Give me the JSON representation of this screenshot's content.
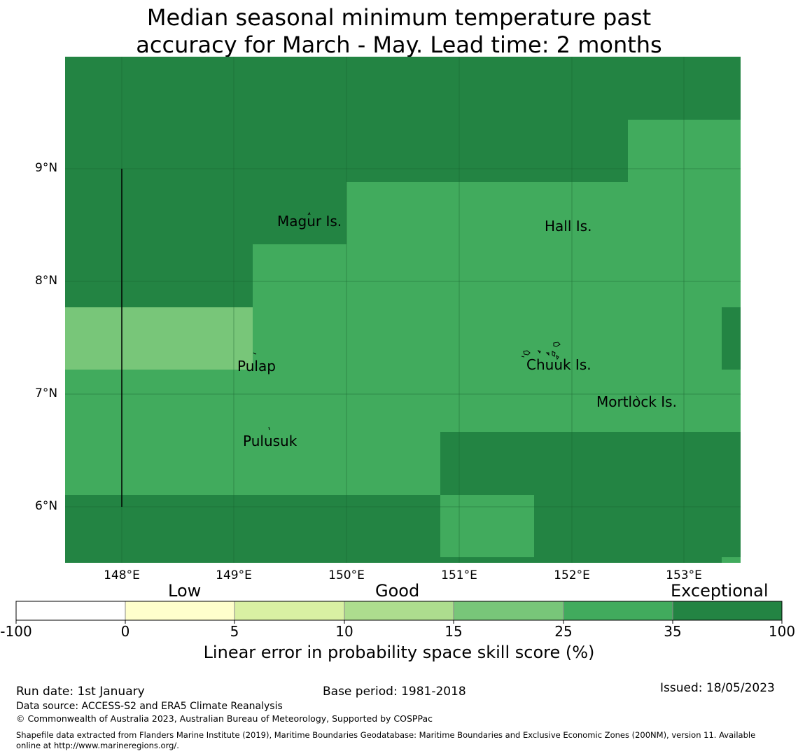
{
  "title_line1": "Median seasonal minimum temperature past",
  "title_line2": "accuracy for March - May. Lead time: 2 months",
  "map": {
    "lat_labels": [
      "9°N",
      "8°N",
      "7°N",
      "6°N"
    ],
    "lon_labels": [
      "148°E",
      "149°E",
      "150°E",
      "151°E",
      "152°E",
      "153°E"
    ],
    "places": [
      "Magur Is.",
      "Hall Is.",
      "Pulap",
      "Chuuk Is.",
      "Mortlock Is.",
      "Pulusuk"
    ],
    "colors": {
      "exceptional": "#238443",
      "dark": "#41ab5d",
      "mid": "#78c679"
    }
  },
  "colorbar": {
    "categories": [
      "Low",
      "Good",
      "Exceptional"
    ],
    "ticks": [
      "-100",
      "0",
      "5",
      "10",
      "15",
      "25",
      "35",
      "100"
    ],
    "colors": [
      "#ffffff",
      "#ffffcc",
      "#d9f0a3",
      "#addd8e",
      "#78c679",
      "#41ab5d",
      "#238443"
    ],
    "label": "Linear error in probability space skill score (%)"
  },
  "footer": {
    "run_date": "Run date: 1st January",
    "base_period": "Base period: 1981-2018",
    "issued": "Issued: 18/05/2023",
    "data_source": "Data source: ACCESS-S2 and ERA5 Climate Reanalysis",
    "copyright": "© Commonwealth of Australia 2023, Australian Bureau of Meteorology, Supported by COSPPac",
    "shapefile_line1": "Shapefile data extracted from Flanders Marine Institute (2019), Maritime Boundaries Geodatabase: Maritime Boundaries and Exclusive Economic Zones (200NM), version 11. Available",
    "shapefile_line2": "online at http://www.marineregions.org/."
  }
}
